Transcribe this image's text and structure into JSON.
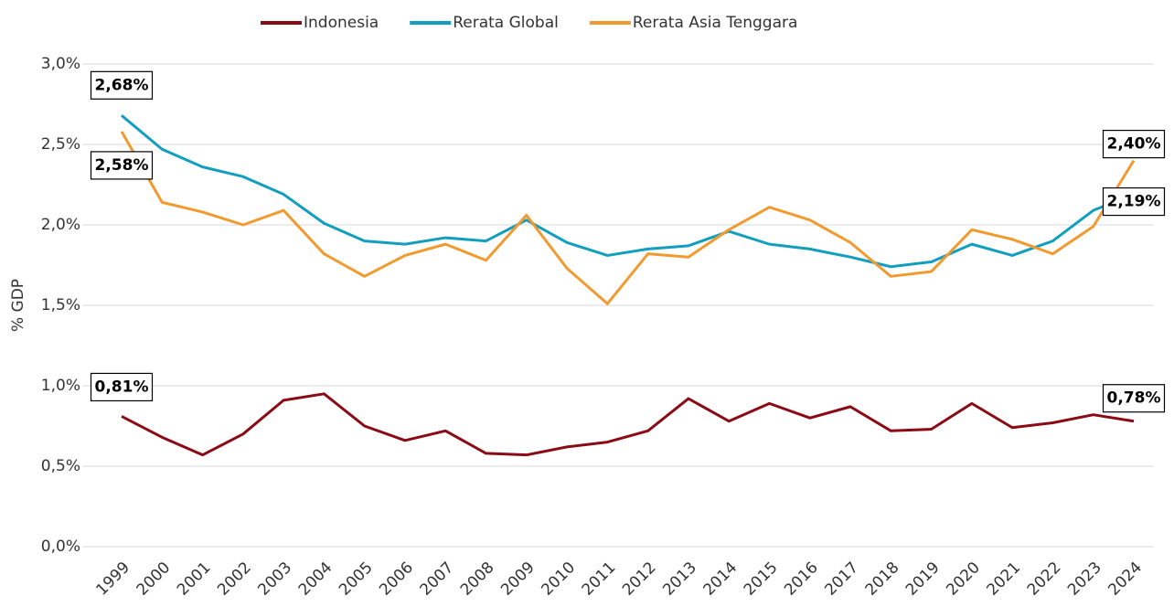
{
  "chart_data": {
    "type": "line",
    "y_label": "% GDP",
    "categories": [
      "1999",
      "2000",
      "2001",
      "2002",
      "2003",
      "2004",
      "2005",
      "2006",
      "2007",
      "2008",
      "2009",
      "2010",
      "2011",
      "2012",
      "2013",
      "2014",
      "2015",
      "2016",
      "2017",
      "2018",
      "2019",
      "2020",
      "2021",
      "2022",
      "2023",
      "2024"
    ],
    "series": [
      {
        "name": "Indonesia",
        "color": "#8b0a14",
        "values": [
          0.81,
          0.68,
          0.57,
          0.7,
          0.91,
          0.95,
          0.75,
          0.66,
          0.72,
          0.58,
          0.57,
          0.62,
          0.65,
          0.72,
          0.92,
          0.78,
          0.89,
          0.8,
          0.87,
          0.72,
          0.73,
          0.89,
          0.74,
          0.77,
          0.82,
          0.78
        ],
        "value_labels": [
          "0,81%",
          null,
          null,
          null,
          null,
          null,
          null,
          null,
          null,
          null,
          null,
          null,
          null,
          null,
          null,
          null,
          null,
          null,
          null,
          null,
          null,
          null,
          null,
          null,
          null,
          "0,78%"
        ]
      },
      {
        "name": "Rerata Global",
        "color": "#119ebf",
        "values": [
          2.68,
          2.47,
          2.36,
          2.3,
          2.19,
          2.01,
          1.9,
          1.88,
          1.92,
          1.9,
          2.03,
          1.89,
          1.81,
          1.85,
          1.87,
          1.96,
          1.88,
          1.85,
          1.8,
          1.74,
          1.77,
          1.88,
          1.81,
          1.9,
          2.09,
          2.19
        ],
        "value_labels": [
          "2,68%",
          null,
          null,
          null,
          null,
          null,
          null,
          null,
          null,
          null,
          null,
          null,
          null,
          null,
          null,
          null,
          null,
          null,
          null,
          null,
          null,
          null,
          null,
          null,
          null,
          "2,19%"
        ]
      },
      {
        "name": "Rerata Asia Tenggara",
        "color": "#f39a2e",
        "values": [
          2.58,
          2.14,
          2.08,
          2.0,
          2.09,
          1.82,
          1.68,
          1.81,
          1.88,
          1.78,
          2.06,
          1.73,
          1.51,
          1.82,
          1.8,
          1.97,
          2.11,
          2.03,
          1.89,
          1.68,
          1.71,
          1.97,
          1.91,
          1.82,
          1.99,
          2.4
        ],
        "value_labels": [
          "2,58%",
          null,
          null,
          null,
          null,
          null,
          null,
          null,
          null,
          null,
          null,
          null,
          null,
          null,
          null,
          null,
          null,
          null,
          null,
          null,
          null,
          null,
          null,
          null,
          null,
          "2,40%"
        ]
      }
    ],
    "ylim": [
      0,
      3
    ],
    "yticks": [
      {
        "value": 0,
        "label": "0,0%"
      },
      {
        "value": 0.5,
        "label": "0,5%"
      },
      {
        "value": 1,
        "label": "1,0%"
      },
      {
        "value": 1.5,
        "label": "1,5%"
      },
      {
        "value": 2,
        "label": "2,0%"
      },
      {
        "value": 2.5,
        "label": "2,5%"
      },
      {
        "value": 3,
        "label": "3,0%"
      }
    ],
    "grid": true,
    "legend": "top"
  }
}
